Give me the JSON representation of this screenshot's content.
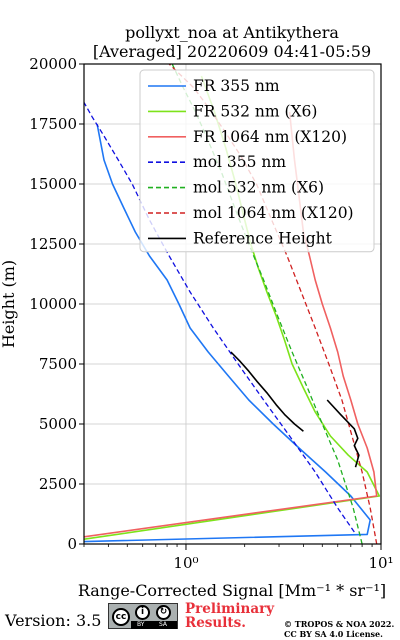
{
  "chart_data": {
    "type": "line",
    "title": "pollyxt_noa at Antikythera",
    "subtitle": "[Averaged] 20220609 04:41-05:59",
    "xlabel": "Range-Corrected Signal [Mm⁻¹ * sr⁻¹]",
    "ylabel": "Height (m)",
    "x_scale": "log",
    "xlim": [
      0.3,
      10
    ],
    "ylim": [
      0,
      20000
    ],
    "x_ticks": [
      {
        "value": 1,
        "label": "10⁰"
      },
      {
        "value": 10,
        "label": "10¹"
      }
    ],
    "y_ticks": [
      0,
      2500,
      5000,
      7500,
      10000,
      12500,
      15000,
      17500,
      20000
    ],
    "grid": true,
    "legend_position": "top-right",
    "series": [
      {
        "name": "FR 355 nm",
        "color": "#1f77f4",
        "style": "solid",
        "x": [
          0.3,
          8.5,
          8.8,
          7.0,
          5.2,
          3.8,
          2.8,
          2.1,
          1.65,
          1.3,
          1.05,
          0.92,
          0.8,
          0.65,
          0.55,
          0.48,
          0.42,
          0.38,
          0.35
        ],
        "y": [
          100,
          400,
          1000,
          2000,
          3000,
          4000,
          5000,
          6000,
          7000,
          8000,
          9000,
          10000,
          11000,
          12000,
          13000,
          14000,
          15000,
          16000,
          17500
        ]
      },
      {
        "name": "FR 532 nm (X6)",
        "color": "#7de31a",
        "style": "solid",
        "x": [
          0.3,
          9.8,
          8.5,
          6.8,
          5.5,
          4.6,
          4.0,
          3.5,
          3.2,
          2.9,
          2.6,
          2.35,
          2.15,
          2.0,
          1.8,
          1.6,
          1.4,
          1.2
        ],
        "y": [
          200,
          2000,
          3000,
          3700,
          4500,
          5500,
          6500,
          7500,
          8500,
          9500,
          10500,
          11500,
          12500,
          13500,
          15000,
          16500,
          18000,
          19500
        ]
      },
      {
        "name": "FR 1064 nm (X120)",
        "color": "#f06060",
        "style": "solid",
        "x": [
          0.3,
          9.5,
          9.2,
          8.5,
          7.6,
          7.0,
          6.4,
          6.0,
          5.5,
          5.0,
          4.6,
          4.3,
          4.0,
          3.8,
          3.6,
          3.4
        ],
        "y": [
          300,
          2000,
          3000,
          4000,
          5000,
          6000,
          7000,
          8000,
          9000,
          10000,
          11000,
          12000,
          13000,
          14500,
          16000,
          18000
        ]
      },
      {
        "name": "mol 355 nm",
        "color": "#1010e0",
        "style": "dashed",
        "x": [
          7.3,
          6.0,
          4.6,
          3.4,
          2.5,
          1.85,
          1.38,
          1.05,
          0.82,
          0.65,
          0.53,
          0.45,
          0.38,
          0.33,
          0.295
        ],
        "y": [
          500,
          1500,
          3000,
          4500,
          6000,
          7500,
          9000,
          10500,
          12000,
          13500,
          15000,
          16000,
          17000,
          17800,
          18500
        ]
      },
      {
        "name": "mol 532 nm (X6)",
        "color": "#20b020",
        "style": "dashed",
        "x": [
          8.0,
          7.2,
          6.0,
          5.0,
          4.2,
          3.5,
          2.95,
          2.5,
          2.1,
          1.78,
          1.52,
          1.3,
          1.12,
          0.97,
          0.85
        ],
        "y": [
          0,
          1500,
          3500,
          5000,
          6500,
          8000,
          9500,
          11000,
          12500,
          14000,
          15500,
          16800,
          18000,
          19000,
          20000
        ]
      },
      {
        "name": "mol 1064 nm (X120)",
        "color": "#d02020",
        "style": "dashed",
        "x": [
          9.5,
          8.8,
          8.0,
          7.1,
          6.3,
          5.4,
          4.6,
          3.9,
          3.3,
          2.75,
          2.3,
          1.9,
          1.58,
          1.3,
          1.1,
          0.95,
          0.82
        ],
        "y": [
          0,
          1500,
          3000,
          4500,
          6000,
          7500,
          9000,
          10500,
          12000,
          13500,
          15000,
          16200,
          17200,
          18200,
          19000,
          19500,
          20000
        ]
      },
      {
        "name": "Reference Height",
        "color": "#000000",
        "style": "solid",
        "segments": [
          {
            "x": [
              1.7,
              1.9,
              2.1,
              2.3,
              2.6,
              2.9,
              3.2,
              3.6,
              4.0
            ],
            "y": [
              8000,
              7600,
              7200,
              6800,
              6300,
              5800,
              5400,
              5000,
              4700
            ]
          },
          {
            "x": [
              5.3,
              6.2,
              7.3,
              7.6,
              7.3,
              7.7,
              7.4
            ],
            "y": [
              6000,
              5400,
              4800,
              4400,
              4100,
              3700,
              3200
            ]
          }
        ]
      }
    ]
  },
  "footer": {
    "version": "Version: 3.5",
    "license_badge_icon": "cc-by-sa-icon",
    "license_badge_text": [
      "BY",
      "SA"
    ],
    "preliminary_line1": "Preliminary",
    "preliminary_line2": "Results.",
    "copyright_line1": "© TROPOS & NOA 2022.",
    "copyright_line2": "CC BY SA 4.0 License."
  }
}
